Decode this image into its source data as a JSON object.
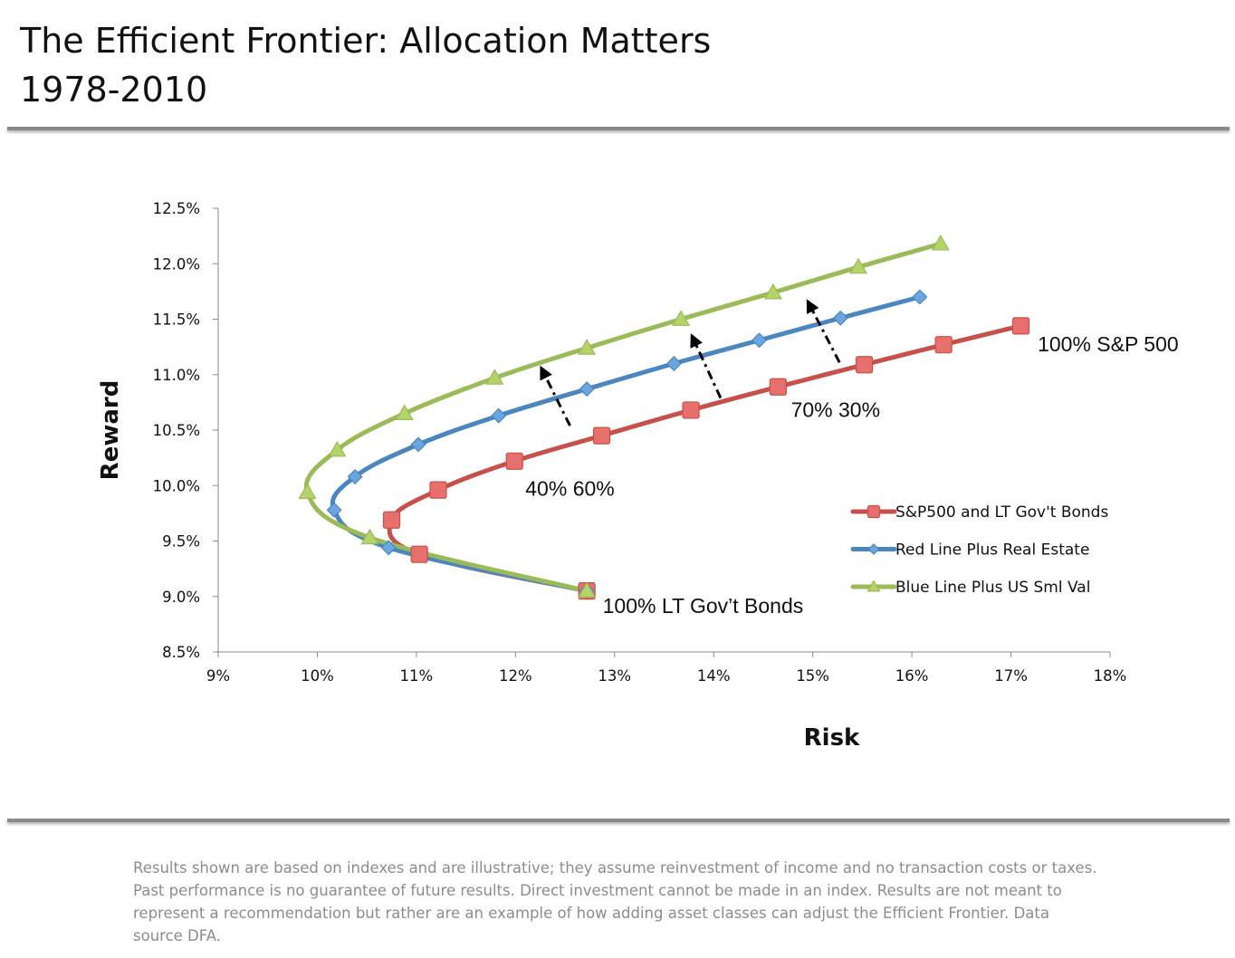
{
  "header": {
    "title_line1": "The Efficient Frontier: Allocation Matters",
    "title_line2": "1978-2010"
  },
  "footer": {
    "lines": [
      "Results shown are based on indexes and are illustrative; they assume reinvestment of income and no transaction costs or taxes.",
      "Past performance is no guarantee of future results.  Direct investment cannot be made in an index.  Results are not meant to",
      "represent a recommendation but rather are an example of how adding asset classes can adjust the Efficient Frontier.  Data",
      "source DFA."
    ]
  },
  "chart_data": {
    "type": "scatter",
    "xlabel": "Risk",
    "ylabel": "Reward",
    "xlim": [
      9,
      18
    ],
    "ylim": [
      8.5,
      12.5
    ],
    "x_ticks": [
      9,
      10,
      11,
      12,
      13,
      14,
      15,
      16,
      17,
      18
    ],
    "x_tick_labels": [
      "9%",
      "10%",
      "11%",
      "12%",
      "13%",
      "14%",
      "15%",
      "16%",
      "17%",
      "18%"
    ],
    "y_ticks": [
      8.5,
      9.0,
      9.5,
      10.0,
      10.5,
      11.0,
      11.5,
      12.0,
      12.5
    ],
    "y_tick_labels": [
      "8.5%",
      "9.0%",
      "9.5%",
      "10.0%",
      "10.5%",
      "11.0%",
      "11.5%",
      "12.0%",
      "12.5%"
    ],
    "grid": false,
    "legend_position": "right",
    "series": [
      {
        "name": "S&P500 and LT Gov't Bonds",
        "color": "#c8504b",
        "marker_color": "#e8706c",
        "marker": "square",
        "x": [
          12.72,
          11.03,
          10.75,
          11.22,
          11.99,
          12.87,
          13.77,
          14.65,
          15.52,
          16.32,
          17.1
        ],
        "y": [
          9.05,
          9.38,
          9.69,
          9.96,
          10.22,
          10.45,
          10.68,
          10.89,
          11.09,
          11.27,
          11.44
        ]
      },
      {
        "name": "Red Line Plus Real Estate",
        "color": "#4a86c0",
        "marker_color": "#6aa6e0",
        "marker": "diamond",
        "x": [
          12.72,
          10.72,
          10.17,
          10.38,
          11.02,
          11.83,
          12.72,
          13.6,
          14.46,
          15.28,
          16.08
        ],
        "y": [
          9.05,
          9.44,
          9.78,
          10.08,
          10.37,
          10.63,
          10.87,
          11.1,
          11.31,
          11.51,
          11.7
        ]
      },
      {
        "name": "Blue Line Plus US Sml Val",
        "color": "#9bbb59",
        "marker_color": "#b4d46a",
        "marker": "triangle",
        "x": [
          12.72,
          10.53,
          9.9,
          10.2,
          10.88,
          11.79,
          12.72,
          13.67,
          14.6,
          15.46,
          16.29
        ],
        "y": [
          9.05,
          9.53,
          9.94,
          10.32,
          10.65,
          10.97,
          11.24,
          11.5,
          11.74,
          11.97,
          12.18
        ]
      }
    ],
    "annotations": [
      {
        "text": "100% S&P 500",
        "x": 17.27,
        "y": 11.21
      },
      {
        "text": "70% 30%",
        "x": 14.78,
        "y": 10.62
      },
      {
        "text": "40% 60%",
        "x": 12.1,
        "y": 9.91
      },
      {
        "text": "100% LT Gov’t Bonds",
        "x": 12.88,
        "y": 8.85
      }
    ],
    "arrows": [
      {
        "from": [
          12.55,
          10.54
        ],
        "to": [
          12.26,
          11.06
        ]
      },
      {
        "from": [
          14.07,
          10.79
        ],
        "to": [
          13.78,
          11.35
        ]
      },
      {
        "from": [
          15.27,
          11.11
        ],
        "to": [
          14.95,
          11.66
        ]
      }
    ]
  }
}
